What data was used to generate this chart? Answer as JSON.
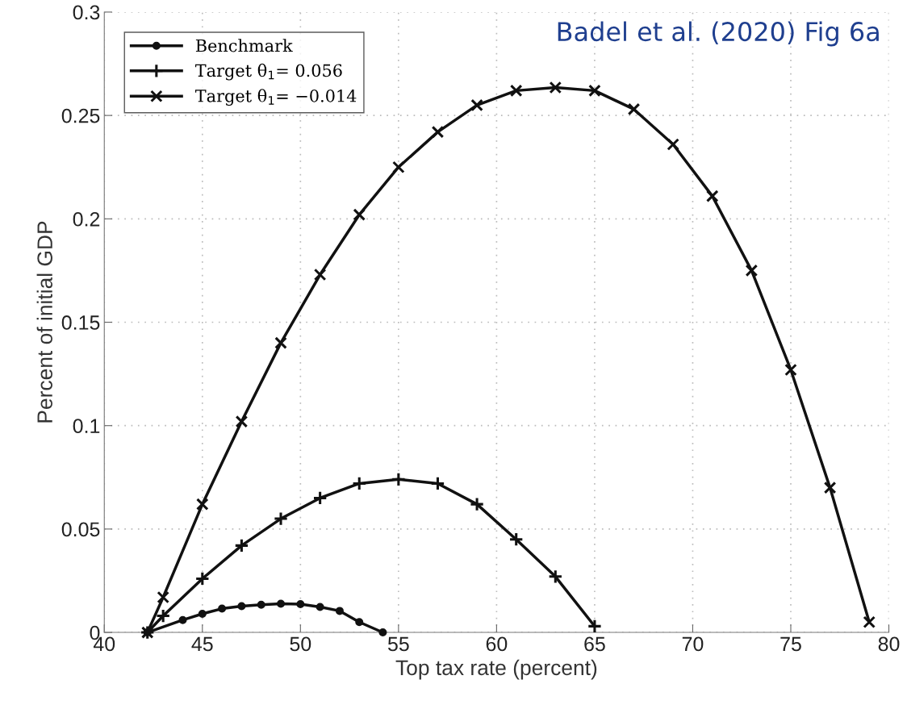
{
  "chart_data": {
    "type": "line",
    "xlabel": "Top tax rate (percent)",
    "ylabel": "Percent of initial GDP",
    "annotations": [
      "Badel et al. (2020) Fig 6a"
    ],
    "xlim": [
      40,
      80
    ],
    "xticks": [
      40,
      45,
      50,
      55,
      60,
      65,
      70,
      75,
      80
    ],
    "ylim": [
      0,
      0.3
    ],
    "yticks": [
      0,
      0.05,
      0.1,
      0.15,
      0.2,
      0.25,
      0.3
    ],
    "grid": true,
    "legend": "top left",
    "series": [
      {
        "name": "Benchmark",
        "color": "#111111",
        "marker": "circle",
        "x": [
          42.2,
          44,
          45,
          46,
          47,
          48,
          49,
          50,
          51,
          52,
          53,
          54.2
        ],
        "values": [
          0,
          0.006,
          0.009,
          0.0115,
          0.0127,
          0.0134,
          0.0139,
          0.0137,
          0.0123,
          0.0104,
          0.005,
          0
        ]
      },
      {
        "name": "Target θ$_{1}$= 0.056",
        "color": "#111111",
        "marker": "plus",
        "x": [
          42.2,
          43,
          45,
          47,
          49,
          51,
          53,
          55,
          57,
          59,
          61,
          63,
          65
        ],
        "values": [
          0,
          0.008,
          0.026,
          0.042,
          0.055,
          0.065,
          0.072,
          0.074,
          0.072,
          0.062,
          0.045,
          0.027,
          0.003
        ]
      },
      {
        "name": "Target θ$_{1}$= −0.014",
        "color": "#111111",
        "marker": "cross",
        "x": [
          42.2,
          43,
          45,
          47,
          49,
          51,
          53,
          55,
          57,
          59,
          61,
          63,
          65,
          67,
          69,
          71,
          73,
          75,
          77,
          79
        ],
        "values": [
          0,
          0.017,
          0.062,
          0.102,
          0.14,
          0.173,
          0.202,
          0.225,
          0.242,
          0.255,
          0.262,
          0.2635,
          0.262,
          0.253,
          0.236,
          0.211,
          0.175,
          0.127,
          0.07,
          0.005
        ]
      }
    ]
  }
}
